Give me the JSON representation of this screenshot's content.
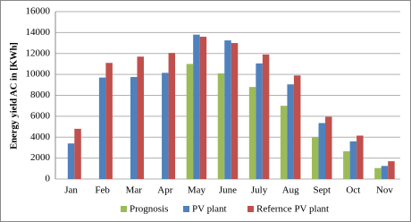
{
  "chart_data": {
    "type": "bar",
    "y_label": "Energy yield  AC in [KWh]",
    "categories": [
      "Jan",
      "Feb",
      "Mar",
      "Apr",
      "May",
      "June",
      "July",
      "Aug",
      "Sept",
      "Oct",
      "Nov"
    ],
    "series": [
      {
        "name": "Prognosis",
        "color": "#9bbb59",
        "values": [
          null,
          null,
          null,
          null,
          11000,
          10100,
          8800,
          7000,
          4000,
          2650,
          1050
        ]
      },
      {
        "name": "PV plant",
        "color": "#4f81bd",
        "values": [
          3400,
          9700,
          9750,
          10150,
          13800,
          13250,
          11050,
          9050,
          5350,
          3600,
          1250
        ]
      },
      {
        "name": "Refernce PV plant",
        "color": "#c0504d",
        "values": [
          4800,
          11100,
          11700,
          12050,
          13600,
          13000,
          11900,
          9900,
          5950,
          4150,
          1700
        ]
      }
    ],
    "ylim": [
      0,
      16000
    ],
    "yticks": [
      0,
      2000,
      4000,
      6000,
      8000,
      10000,
      12000,
      14000,
      16000
    ],
    "grid": true
  }
}
